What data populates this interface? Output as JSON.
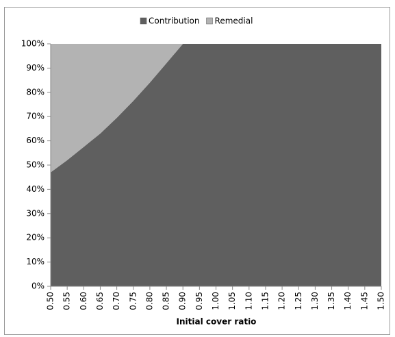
{
  "chart_data": {
    "type": "stacked_area",
    "x_label": "Initial cover ratio",
    "categories": [
      "0.50",
      "0.55",
      "0.60",
      "0.65",
      "0.70",
      "0.75",
      "0.80",
      "0.85",
      "0.90",
      "0.95",
      "1.00",
      "1.05",
      "1.10",
      "1.15",
      "1.20",
      "1.25",
      "1.30",
      "1.35",
      "1.40",
      "1.45",
      "1.50"
    ],
    "series": [
      {
        "name": "Contribution",
        "color": "#5f5f5f",
        "values": [
          47,
          52,
          57.5,
          63,
          69.5,
          76.5,
          84,
          92,
          100,
          100,
          100,
          100,
          100,
          100,
          100,
          100,
          100,
          100,
          100,
          100,
          100
        ]
      },
      {
        "name": "Remedial",
        "color": "#b3b3b3",
        "values": [
          53,
          48,
          42.5,
          37,
          30.5,
          23.5,
          16,
          8,
          0,
          0,
          0,
          0,
          0,
          0,
          0,
          0,
          0,
          0,
          0,
          0,
          0
        ]
      }
    ],
    "ylim": [
      0,
      100
    ],
    "yticks": [
      {
        "value": 0,
        "label": "0%"
      },
      {
        "value": 10,
        "label": "10%"
      },
      {
        "value": 20,
        "label": "20%"
      },
      {
        "value": 30,
        "label": "30%"
      },
      {
        "value": 40,
        "label": "40%"
      },
      {
        "value": 50,
        "label": "50%"
      },
      {
        "value": 60,
        "label": "60%"
      },
      {
        "value": 70,
        "label": "70%"
      },
      {
        "value": 80,
        "label": "80%"
      },
      {
        "value": 90,
        "label": "90%"
      },
      {
        "value": 100,
        "label": "100%"
      }
    ],
    "legend": "top"
  }
}
